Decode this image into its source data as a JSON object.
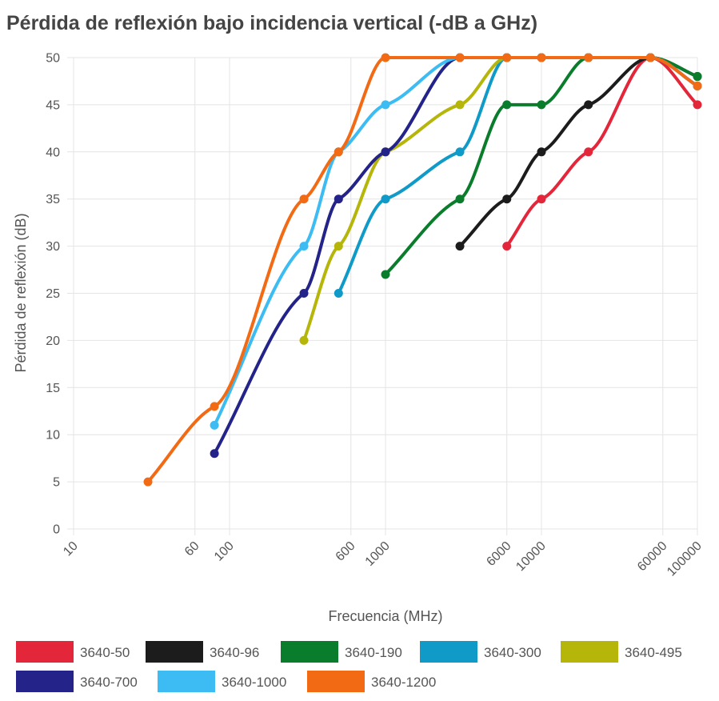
{
  "chart_data": {
    "type": "line",
    "title": "Pérdida de reflexión bajo incidencia vertical (-dB a GHz)",
    "xlabel": "Frecuencia (MHz)",
    "ylabel": "Pérdida de reflexión (dB)",
    "x_scale": "log",
    "xlim": [
      10,
      100000
    ],
    "ylim": [
      0,
      50
    ],
    "x_ticks": [
      10,
      60,
      100,
      600,
      1000,
      6000,
      10000,
      60000,
      100000
    ],
    "x_tick_labels": [
      "10",
      "60",
      "100",
      "600",
      "1000",
      "6000",
      "10000",
      "60000",
      "100000"
    ],
    "y_ticks": [
      0,
      5,
      10,
      15,
      20,
      25,
      30,
      35,
      40,
      45,
      50
    ],
    "y_tick_labels": [
      "0",
      "5",
      "10",
      "15",
      "20",
      "25",
      "30",
      "35",
      "40",
      "45",
      "50"
    ],
    "grid": true,
    "legend_position": "bottom",
    "series": [
      {
        "name": "3640-50",
        "color": "#e3263a",
        "x": [
          6000,
          10000,
          20000,
          50000,
          100000
        ],
        "y": [
          30,
          35,
          40,
          50,
          45
        ]
      },
      {
        "name": "3640-96",
        "color": "#1c1c1c",
        "x": [
          3000,
          6000,
          10000,
          20000,
          50000,
          100000
        ],
        "y": [
          30,
          35,
          40,
          45,
          50,
          48
        ]
      },
      {
        "name": "3640-190",
        "color": "#0a7d2c",
        "x": [
          1000,
          3000,
          6000,
          10000,
          20000,
          50000,
          100000
        ],
        "y": [
          27,
          35,
          45,
          45,
          50,
          50,
          48
        ]
      },
      {
        "name": "3640-300",
        "color": "#0f9ac8",
        "x": [
          500,
          1000,
          3000,
          6000,
          10000,
          20000,
          50000,
          100000
        ],
        "y": [
          25,
          35,
          40,
          50,
          50,
          50,
          50,
          47
        ]
      },
      {
        "name": "3640-495",
        "color": "#b5b50a",
        "x": [
          300,
          500,
          1000,
          3000,
          6000,
          10000,
          20000,
          50000,
          100000
        ],
        "y": [
          20,
          30,
          40,
          45,
          50,
          50,
          50,
          50,
          47
        ]
      },
      {
        "name": "3640-700",
        "color": "#23238a",
        "x": [
          80,
          300,
          500,
          1000,
          3000,
          6000,
          10000,
          20000,
          50000,
          100000
        ],
        "y": [
          8,
          25,
          35,
          40,
          50,
          50,
          50,
          50,
          50,
          47
        ]
      },
      {
        "name": "3640-1000",
        "color": "#3cbcf2",
        "x": [
          80,
          300,
          500,
          1000,
          3000,
          6000,
          10000,
          20000,
          50000,
          100000
        ],
        "y": [
          11,
          30,
          40,
          45,
          50,
          50,
          50,
          50,
          50,
          47
        ]
      },
      {
        "name": "3640-1200",
        "color": "#f26a14",
        "x": [
          30,
          80,
          300,
          500,
          1000,
          3000,
          6000,
          10000,
          20000,
          50000,
          100000
        ],
        "y": [
          5,
          13,
          35,
          40,
          50,
          50,
          50,
          50,
          50,
          50,
          47
        ]
      }
    ]
  }
}
